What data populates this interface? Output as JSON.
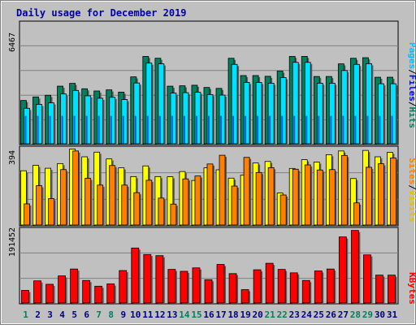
{
  "title": "Daily usage for December 2019",
  "colors": {
    "background": "#c0c0c0",
    "title": "#0000aa",
    "hits": "#00805c",
    "files": "#00e0ff",
    "pages": "#00c0ff",
    "visits": "#ffff00",
    "sites": "#ff8000",
    "kbytes": "#ff0000",
    "weekend_label": "#00805c",
    "weekday_label": "#000080"
  },
  "chart_data": [
    {
      "type": "bar",
      "panel": "top",
      "ymax_label": "6467",
      "ylim": [
        0,
        6467
      ],
      "grid": true,
      "legend": [
        "Pages",
        "Files",
        "Hits"
      ],
      "categories": [
        "1",
        "2",
        "3",
        "4",
        "5",
        "6",
        "7",
        "8",
        "9",
        "10",
        "11",
        "12",
        "13",
        "14",
        "15",
        "16",
        "17",
        "18",
        "19",
        "20",
        "21",
        "22",
        "23",
        "24",
        "25",
        "26",
        "27",
        "28",
        "29",
        "30",
        "31"
      ],
      "series": [
        {
          "name": "Hits",
          "values": [
            2330,
            2520,
            2610,
            3100,
            3250,
            2960,
            2840,
            2900,
            2780,
            3600,
            4700,
            4600,
            3100,
            3120,
            3150,
            3030,
            2980,
            4600,
            3670,
            3670,
            3630,
            3910,
            4700,
            4700,
            3620,
            3620,
            4300,
            4600,
            4630,
            3580,
            3580
          ]
        },
        {
          "name": "Files",
          "values": [
            1910,
            2120,
            2200,
            2680,
            2870,
            2580,
            2450,
            2500,
            2380,
            3270,
            4340,
            4300,
            2730,
            2750,
            2770,
            2650,
            2620,
            4270,
            3300,
            3300,
            3260,
            3560,
            4380,
            4380,
            3260,
            3260,
            3940,
            4270,
            4310,
            3230,
            3230
          ]
        },
        {
          "name": "Pages",
          "values": [
            1500,
            1500,
            1500,
            1500,
            1500,
            1500,
            1500,
            1500,
            1500,
            1500,
            1500,
            1500,
            1500,
            1500,
            1500,
            1500,
            1500,
            1500,
            1500,
            1500,
            1500,
            1500,
            1500,
            1500,
            1500,
            1500,
            1500,
            1500,
            1500,
            1500,
            1500
          ]
        }
      ]
    },
    {
      "type": "bar",
      "panel": "middle",
      "ymax_label": "394",
      "ylim": [
        0,
        394
      ],
      "grid": true,
      "legend": [
        "Sites",
        "Visits"
      ],
      "categories": [
        "1",
        "2",
        "3",
        "4",
        "5",
        "6",
        "7",
        "8",
        "9",
        "10",
        "11",
        "12",
        "13",
        "14",
        "15",
        "16",
        "17",
        "18",
        "19",
        "20",
        "21",
        "22",
        "23",
        "24",
        "25",
        "26",
        "27",
        "28",
        "29",
        "30",
        "31"
      ],
      "series": [
        {
          "name": "Visits",
          "values": [
            280,
            308,
            293,
            317,
            392,
            352,
            376,
            341,
            295,
            250,
            305,
            250,
            249,
            276,
            230,
            295,
            285,
            242,
            257,
            320,
            328,
            165,
            292,
            337,
            325,
            363,
            382,
            240,
            385,
            352,
            375
          ]
        },
        {
          "name": "Sites",
          "values": [
            109,
            203,
            136,
            286,
            382,
            241,
            206,
            307,
            206,
            167,
            231,
            139,
            108,
            238,
            253,
            315,
            360,
            201,
            349,
            271,
            296,
            155,
            288,
            310,
            284,
            286,
            359,
            114,
            298,
            316,
            346
          ]
        }
      ]
    },
    {
      "type": "bar",
      "panel": "bottom",
      "ymax_label": "191452",
      "ylim": [
        0,
        191452
      ],
      "grid": true,
      "legend": [
        "KBytes"
      ],
      "categories": [
        "1",
        "2",
        "3",
        "4",
        "5",
        "6",
        "7",
        "8",
        "9",
        "10",
        "11",
        "12",
        "13",
        "14",
        "15",
        "16",
        "17",
        "18",
        "19",
        "20",
        "21",
        "22",
        "23",
        "24",
        "25",
        "26",
        "27",
        "28",
        "29",
        "30",
        "31"
      ],
      "series": [
        {
          "name": "KBytes",
          "values": [
            33000,
            58000,
            49000,
            71000,
            89000,
            59000,
            44000,
            50000,
            85000,
            144000,
            127000,
            124000,
            88000,
            83000,
            92000,
            61000,
            101000,
            77000,
            35000,
            87000,
            104000,
            88000,
            79000,
            59000,
            84000,
            89000,
            173000,
            190000,
            126000,
            73000,
            73000
          ]
        }
      ]
    }
  ],
  "x_labels": [
    "1",
    "2",
    "3",
    "4",
    "5",
    "6",
    "7",
    "8",
    "9",
    "10",
    "11",
    "12",
    "13",
    "14",
    "15",
    "16",
    "17",
    "18",
    "19",
    "20",
    "21",
    "22",
    "23",
    "24",
    "25",
    "26",
    "27",
    "28",
    "29",
    "30",
    "31"
  ],
  "weekend_days": [
    1,
    7,
    8,
    14,
    15,
    21,
    22,
    28,
    29
  ],
  "legend_top": {
    "pages": "Pages",
    "files": "Files",
    "hits": "Hits",
    "sep": "/"
  },
  "legend_mid": {
    "sites": "Sites",
    "visits": "Visits",
    "sep": "/"
  },
  "legend_bottom": {
    "kbytes": "KBytes"
  }
}
